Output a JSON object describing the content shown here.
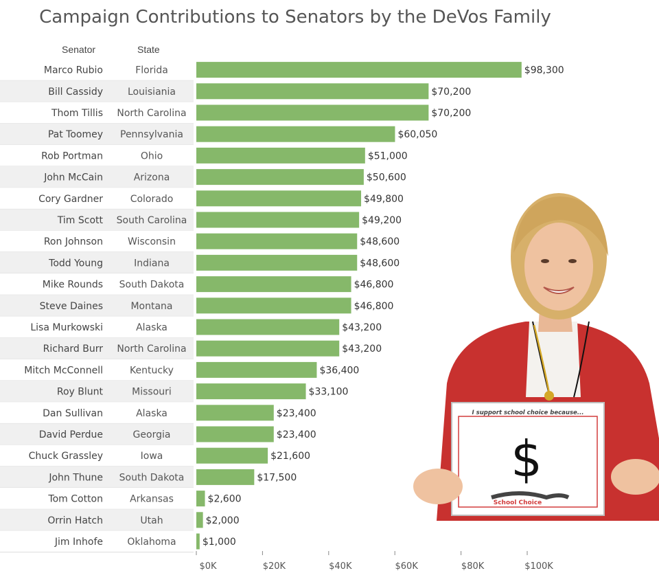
{
  "chart_data": {
    "type": "bar",
    "orientation": "horizontal",
    "title": "Campaign Contributions to Senators by the DeVos Family",
    "columns": [
      "Senator",
      "State"
    ],
    "rows": [
      {
        "senator": "Marco Rubio",
        "state": "Florida",
        "value": 98300,
        "label": "$98,300"
      },
      {
        "senator": "Bill Cassidy",
        "state": "Louisiania",
        "value": 70200,
        "label": "$70,200"
      },
      {
        "senator": "Thom Tillis",
        "state": "North Carolina",
        "value": 70200,
        "label": "$70,200"
      },
      {
        "senator": "Pat Toomey",
        "state": "Pennsylvania",
        "value": 60050,
        "label": "$60,050"
      },
      {
        "senator": "Rob Portman",
        "state": "Ohio",
        "value": 51000,
        "label": "$51,000"
      },
      {
        "senator": "John McCain",
        "state": "Arizona",
        "value": 50600,
        "label": "$50,600"
      },
      {
        "senator": "Cory Gardner",
        "state": "Colorado",
        "value": 49800,
        "label": "$49,800"
      },
      {
        "senator": "Tim Scott",
        "state": "South Carolina",
        "value": 49200,
        "label": "$49,200"
      },
      {
        "senator": "Ron Johnson",
        "state": "Wisconsin",
        "value": 48600,
        "label": "$48,600"
      },
      {
        "senator": "Todd Young",
        "state": "Indiana",
        "value": 48600,
        "label": "$48,600"
      },
      {
        "senator": "Mike Rounds",
        "state": "South Dakota",
        "value": 46800,
        "label": "$46,800"
      },
      {
        "senator": "Steve Daines",
        "state": "Montana",
        "value": 46800,
        "label": "$46,800"
      },
      {
        "senator": "Lisa Murkowski",
        "state": "Alaska",
        "value": 43200,
        "label": "$43,200"
      },
      {
        "senator": "Richard Burr",
        "state": "North Carolina",
        "value": 43200,
        "label": "$43,200"
      },
      {
        "senator": "Mitch McConnell",
        "state": "Kentucky",
        "value": 36400,
        "label": "$36,400"
      },
      {
        "senator": "Roy Blunt",
        "state": "Missouri",
        "value": 33100,
        "label": "$33,100"
      },
      {
        "senator": "Dan Sullivan",
        "state": "Alaska",
        "value": 23400,
        "label": "$23,400"
      },
      {
        "senator": "David Perdue",
        "state": "Georgia",
        "value": 23400,
        "label": "$23,400"
      },
      {
        "senator": "Chuck Grassley",
        "state": "Iowa",
        "value": 21600,
        "label": "$21,600"
      },
      {
        "senator": "John Thune",
        "state": "South Dakota",
        "value": 17500,
        "label": "$17,500"
      },
      {
        "senator": "Tom Cotton",
        "state": "Arkansas",
        "value": 2600,
        "label": "$2,600"
      },
      {
        "senator": "Orrin Hatch",
        "state": "Utah",
        "value": 2000,
        "label": "$2,000"
      },
      {
        "senator": "Jim Inhofe",
        "state": "Oklahoma",
        "value": 1000,
        "label": "$1,000"
      }
    ],
    "xticks": [
      {
        "value": 0,
        "label": "$0K"
      },
      {
        "value": 20000,
        "label": "$20K"
      },
      {
        "value": 40000,
        "label": "$40K"
      },
      {
        "value": 60000,
        "label": "$60K"
      },
      {
        "value": 80000,
        "label": "$80K"
      },
      {
        "value": 100000,
        "label": "$100K"
      }
    ],
    "xlim": [
      0,
      100000
    ],
    "bar_color": "#86b86a",
    "band_color": "#f0f0f0"
  },
  "sign": {
    "caption": "I support school choice because...",
    "symbol": "$",
    "logo_text": "School Choice"
  }
}
